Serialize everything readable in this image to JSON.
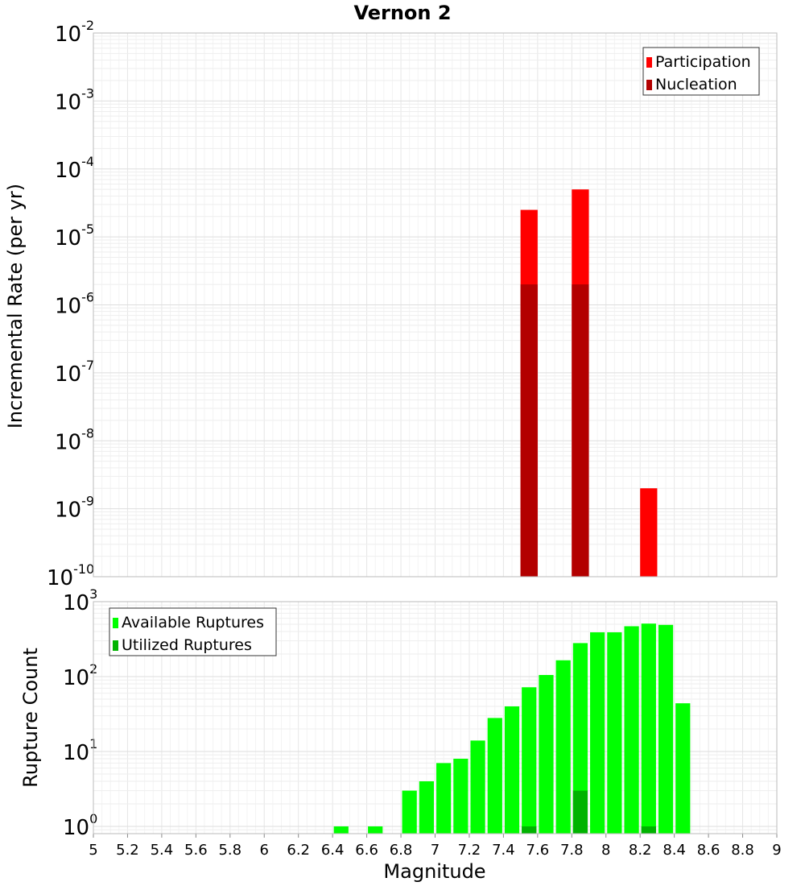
{
  "chart_data": [
    {
      "type": "bar",
      "title": "Vernon 2",
      "ylabel": "Incremental Rate (per yr)",
      "xlabel": "",
      "xlim": [
        5,
        9
      ],
      "ylim": [
        1e-10,
        0.01
      ],
      "yscale": "log",
      "ytick_exponents": [
        -10,
        -9,
        -8,
        -7,
        -6,
        -5,
        -4,
        -3,
        -2
      ],
      "grid": true,
      "bin_width": 0.1,
      "legend_position": "top-right",
      "series": [
        {
          "name": "Participation",
          "color": "#ff0000",
          "x": [
            7.55,
            7.85,
            8.25
          ],
          "values": [
            2.5e-05,
            5e-05,
            2e-09
          ]
        },
        {
          "name": "Nucleation",
          "color": "#b30000",
          "x": [
            7.55,
            7.85
          ],
          "values": [
            2e-06,
            2e-06
          ]
        }
      ]
    },
    {
      "type": "bar",
      "title": "",
      "ylabel": "Rupture Count",
      "xlabel": "Magnitude",
      "xlim": [
        5,
        9
      ],
      "ylim": [
        0.8,
        1000
      ],
      "yscale": "log",
      "ytick_exponents": [
        0,
        1,
        2,
        3
      ],
      "xticks": [
        "5",
        "5.2",
        "5.4",
        "5.6",
        "5.8",
        "6",
        "6.2",
        "6.4",
        "6.6",
        "6.8",
        "7",
        "7.2",
        "7.4",
        "7.6",
        "7.8",
        "8",
        "8.2",
        "8.4",
        "8.6",
        "8.8",
        "9"
      ],
      "grid": true,
      "bin_width": 0.1,
      "legend_position": "top-left",
      "series": [
        {
          "name": "Available Ruptures",
          "color": "#00ff00",
          "x": [
            6.45,
            6.65,
            6.85,
            6.95,
            7.05,
            7.15,
            7.25,
            7.35,
            7.45,
            7.55,
            7.65,
            7.75,
            7.85,
            7.95,
            8.05,
            8.15,
            8.25,
            8.35,
            8.45
          ],
          "values": [
            1,
            1,
            3,
            4,
            7,
            8,
            14,
            28,
            40,
            72,
            105,
            165,
            280,
            390,
            390,
            470,
            510,
            490,
            44
          ]
        },
        {
          "name": "Utilized Ruptures",
          "color": "#00b300",
          "x": [
            7.55,
            7.85,
            8.25
          ],
          "values": [
            1,
            3,
            1
          ]
        }
      ]
    }
  ]
}
